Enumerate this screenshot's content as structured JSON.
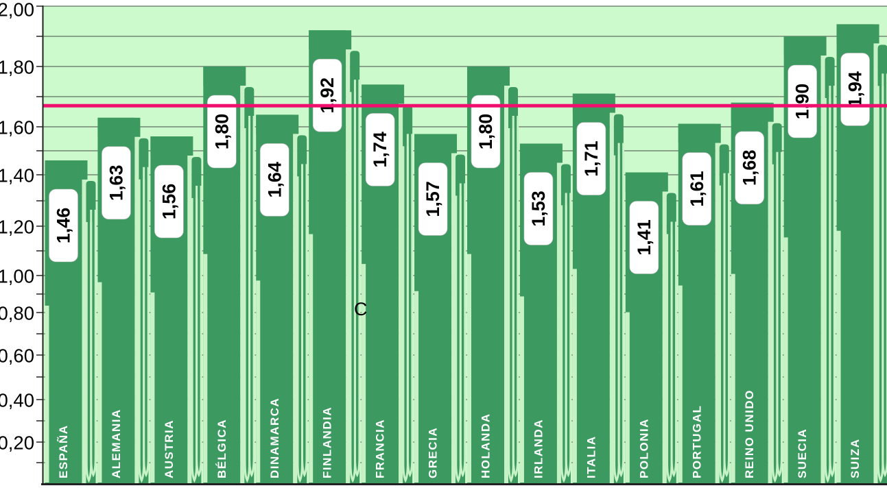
{
  "chart_data": {
    "type": "bar",
    "title": "",
    "categories": [
      "ESPAÑA",
      "ALEMANIA",
      "AUSTRIA",
      "BÉLGICA",
      "DINAMARCA",
      "FINLANDIA",
      "FRANCIA",
      "GRECIA",
      "HOLANDA",
      "IRLANDA",
      "ITALIA",
      "POLONIA",
      "PORTUGAL",
      "REINO UNIDO",
      "SUECIA",
      "SUIZA"
    ],
    "values": [
      1.46,
      1.63,
      1.56,
      1.8,
      1.64,
      1.92,
      1.74,
      1.57,
      1.8,
      1.53,
      1.71,
      1.41,
      1.61,
      1.68,
      1.9,
      1.94
    ],
    "value_labels": [
      "1,46",
      "1,63",
      "1,56",
      "1,80",
      "1,64",
      "1,92",
      "1,74",
      "1,57",
      "1,80",
      "1,53",
      "1,71",
      "1,41",
      "1,61",
      "1,68",
      "1,90",
      "1,94"
    ],
    "xlabel": "",
    "ylabel": "",
    "ylim": [
      0,
      2.0
    ],
    "ytick_labels": [
      "2,00",
      "1,80",
      "1,60",
      "1,40",
      "1,20",
      "1,00",
      "0,80",
      "0,60",
      "0,40",
      "0,20"
    ],
    "ytick_values": [
      2.0,
      1.8,
      1.6,
      1.4,
      1.2,
      1.0,
      0.8,
      0.6,
      0.4,
      0.2
    ],
    "minor_grid_step": 0.1,
    "grid": true,
    "legend": false,
    "reference_line": {
      "value": 1.67,
      "color": "#F00F6E"
    },
    "colors": {
      "bar": "#3C9A61",
      "plot_bg": "#CDFACC",
      "stripe": "#C7F2C5",
      "grid": "#5F6F5F",
      "axis": "#222222",
      "label_box": "#FFFFFF",
      "value_text": "#000000",
      "category_text": "#FFFFFF"
    }
  },
  "artifacts": {
    "stray_character": "C"
  }
}
